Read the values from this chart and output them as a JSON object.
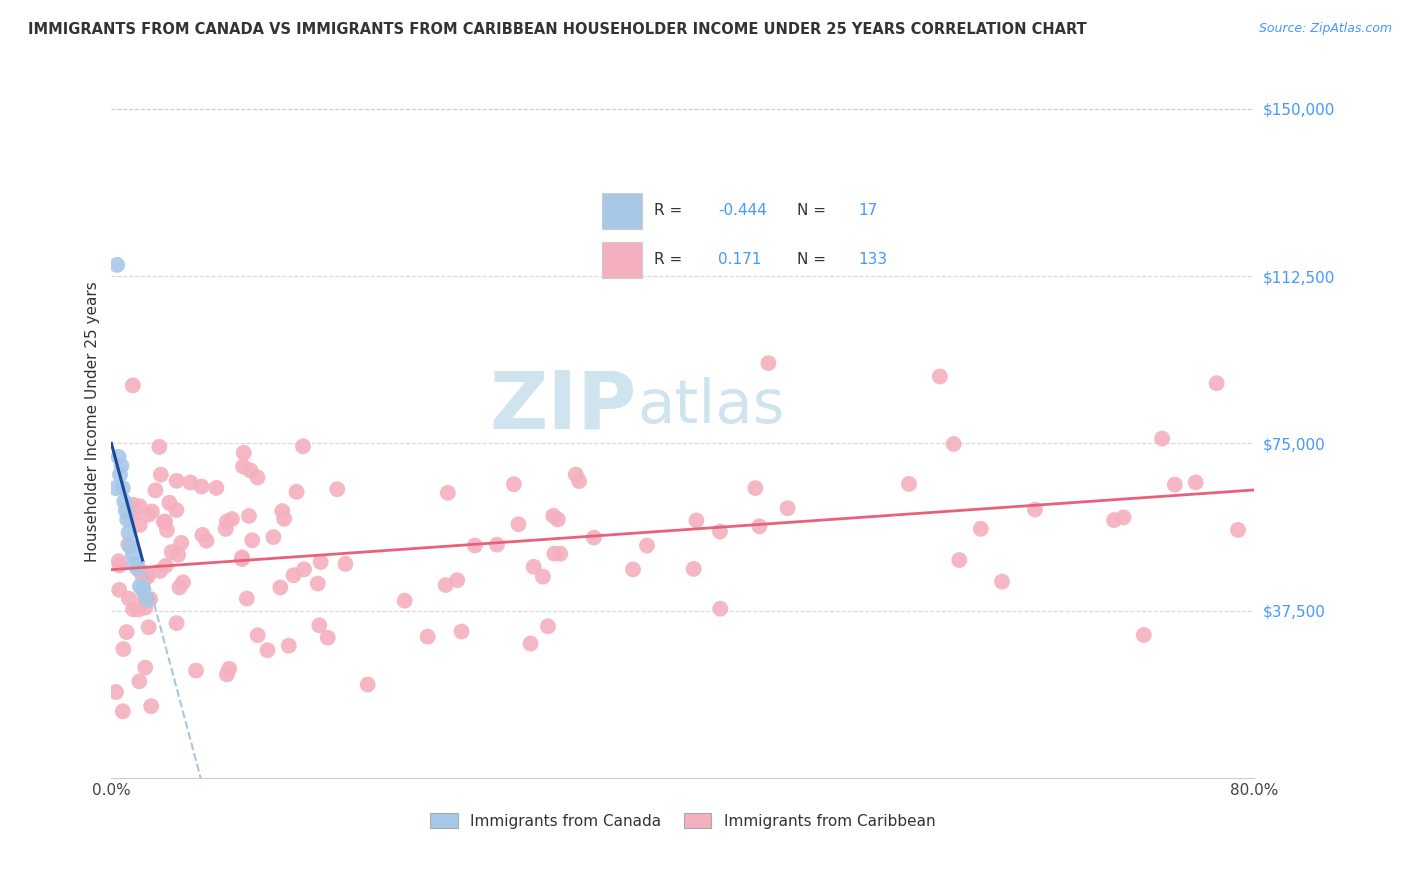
{
  "title": "IMMIGRANTS FROM CANADA VS IMMIGRANTS FROM CARIBBEAN HOUSEHOLDER INCOME UNDER 25 YEARS CORRELATION CHART",
  "source": "Source: ZipAtlas.com",
  "ylabel": "Householder Income Under 25 years",
  "xlim": [
    0.0,
    0.8
  ],
  "ylim": [
    0,
    160000
  ],
  "yticks": [
    0,
    37500,
    75000,
    112500,
    150000
  ],
  "ytick_labels": [
    "",
    "$37,500",
    "$75,000",
    "$112,500",
    "$150,000"
  ],
  "xticks": [
    0.0,
    0.1,
    0.2,
    0.3,
    0.4,
    0.5,
    0.6,
    0.7,
    0.8
  ],
  "canada_R": -0.444,
  "canada_N": 17,
  "caribbean_R": 0.171,
  "caribbean_N": 133,
  "canada_color": "#a8c8e8",
  "caribbean_color": "#f4b0be",
  "canada_line_color": "#1a4a9a",
  "caribbean_line_color": "#e8607a",
  "canada_line_dash_color": "#aac4e0",
  "background_color": "#ffffff",
  "grid_color": "#cccccc",
  "title_color": "#333333",
  "source_color": "#4499ff",
  "ytick_color": "#4499ff",
  "watermark_color": "#d0e4f0",
  "legend_border_color": "#cccccc",
  "legend_text_color": "#333333",
  "legend_value_color": "#4499ff"
}
